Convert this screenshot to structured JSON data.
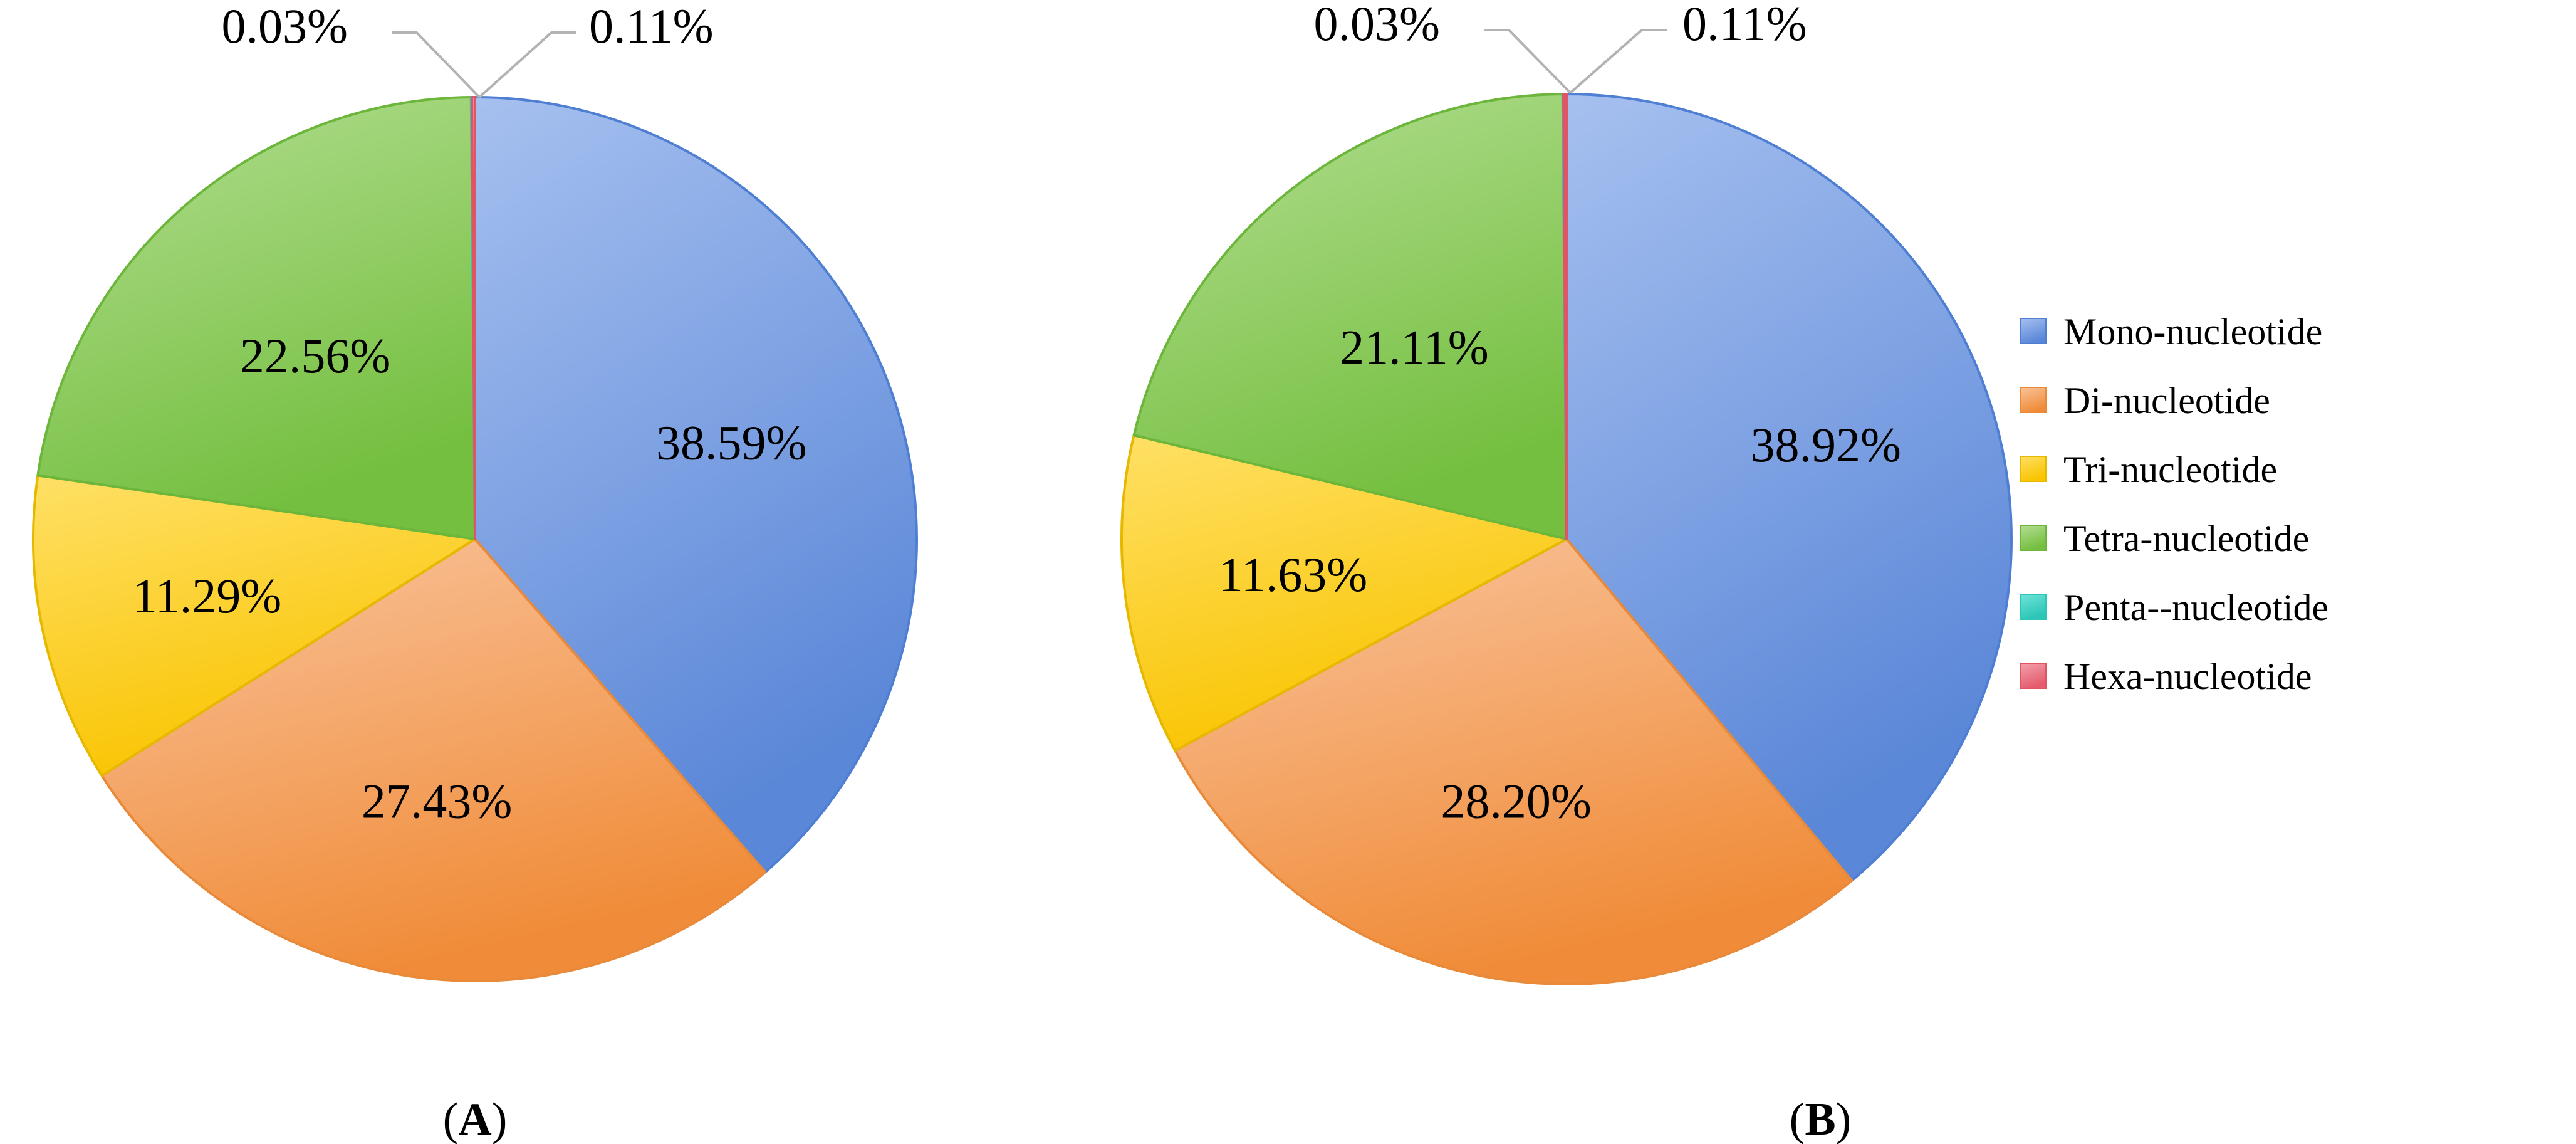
{
  "chart_data": [
    {
      "type": "pie",
      "panel_label": "A",
      "categories": [
        "Mono-nucleotide",
        "Di-nucleotide",
        "Tri-nucleotide",
        "Tetra-nucleotide",
        "Penta--nucleotide",
        "Hexa-nucleotide"
      ],
      "values": [
        38.59,
        27.43,
        11.29,
        22.56,
        0.03,
        0.11
      ],
      "data_labels": [
        "38.59%",
        "27.43%",
        "11.29%",
        "22.56%",
        "0.03%",
        "0.11%"
      ],
      "start_angle_deg": 0,
      "direction": "clockwise"
    },
    {
      "type": "pie",
      "panel_label": "B",
      "categories": [
        "Mono-nucleotide",
        "Di-nucleotide",
        "Tri-nucleotide",
        "Tetra-nucleotide",
        "Penta--nucleotide",
        "Hexa-nucleotide"
      ],
      "values": [
        38.92,
        28.2,
        11.63,
        21.11,
        0.03,
        0.11
      ],
      "data_labels": [
        "38.92%",
        "28.20%",
        "11.63%",
        "21.11%",
        "0.03%",
        "0.11%"
      ],
      "start_angle_deg": 0,
      "direction": "clockwise"
    }
  ],
  "legend": {
    "placement": "right",
    "items": [
      {
        "label": "Mono-nucleotide",
        "color": "#6f97e0"
      },
      {
        "label": "Di-nucleotide",
        "color": "#f39b55"
      },
      {
        "label": "Tri-nucleotide",
        "color": "#fccb1c"
      },
      {
        "label": "Tetra-nucleotide",
        "color": "#8ccb5e"
      },
      {
        "label": "Penta--nucleotide",
        "color": "#3fd3c4"
      },
      {
        "label": "Hexa-nucleotide",
        "color": "#eb7686"
      }
    ]
  },
  "colors": {
    "Mono-nucleotide": {
      "light": "#a6c0ef",
      "dark": "#5b87d8",
      "edge": "#4f7fd3"
    },
    "Di-nucleotide": {
      "light": "#f9c39b",
      "dark": "#f08c39",
      "edge": "#e98a3a"
    },
    "Tri-nucleotide": {
      "light": "#ffe066",
      "dark": "#f9c400",
      "edge": "#e6b800"
    },
    "Tetra-nucleotide": {
      "light": "#b4de92",
      "dark": "#74bf3f",
      "edge": "#6db63c"
    },
    "Penta--nucleotide": {
      "light": "#6fe3d8",
      "dark": "#2cc5b6",
      "edge": "#2cc5b6"
    },
    "Hexa-nucleotide": {
      "light": "#f3a1ab",
      "dark": "#e45c6e",
      "edge": "#e05566"
    },
    "callout_line": "#b3b3b3"
  }
}
